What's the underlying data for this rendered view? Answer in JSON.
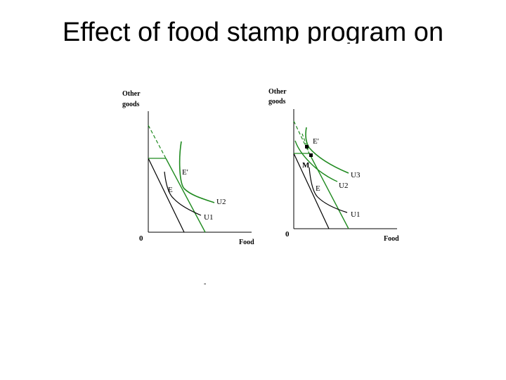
{
  "slide": {
    "title": "Effect of food stamp program on"
  },
  "colors": {
    "green": "#1f8a1f",
    "black": "#000000"
  },
  "diagrams": [
    {
      "y_axis_label_line1": "Other",
      "y_axis_label_line2": "goods",
      "x_axis_label": "Food",
      "origin_label": "0",
      "point_labels": [
        "E'",
        "E"
      ],
      "curve_labels": [
        "U2",
        "U1"
      ]
    },
    {
      "y_axis_label_line1": "Other",
      "y_axis_label_line2": "goods",
      "x_axis_label": "Food",
      "origin_label": "0",
      "point_labels": [
        "E'",
        "M",
        "E"
      ],
      "curve_labels": [
        "U3",
        "U2",
        "U1"
      ]
    }
  ],
  "footnote": "-"
}
